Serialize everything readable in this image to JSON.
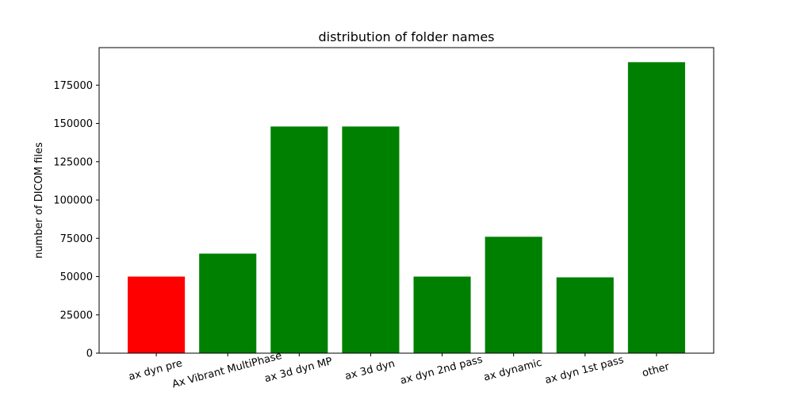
{
  "chart_data": {
    "type": "bar",
    "title": "distribution of folder names",
    "xlabel": "",
    "ylabel": "number of DICOM files",
    "categories": [
      "ax dyn pre",
      "Ax Vibrant MultiPhase",
      "ax 3d dyn MP",
      "ax 3d dyn",
      "ax dyn 2nd pass",
      "ax dynamic",
      "ax dyn 1st pass",
      "other"
    ],
    "values": [
      50000,
      65000,
      148000,
      148000,
      50000,
      76000,
      49500,
      190000
    ],
    "bar_colors": [
      "#ff0000",
      "#008000",
      "#008000",
      "#008000",
      "#008000",
      "#008000",
      "#008000",
      "#008000"
    ],
    "ylim": [
      0,
      199500
    ],
    "yticks": [
      0,
      25000,
      50000,
      75000,
      100000,
      125000,
      150000,
      175000
    ],
    "ytick_labels": [
      "0",
      "25000",
      "50000",
      "75000",
      "100000",
      "125000",
      "150000",
      "175000"
    ],
    "xtick_rotation_deg": 15,
    "grid": false,
    "legend": "none"
  }
}
